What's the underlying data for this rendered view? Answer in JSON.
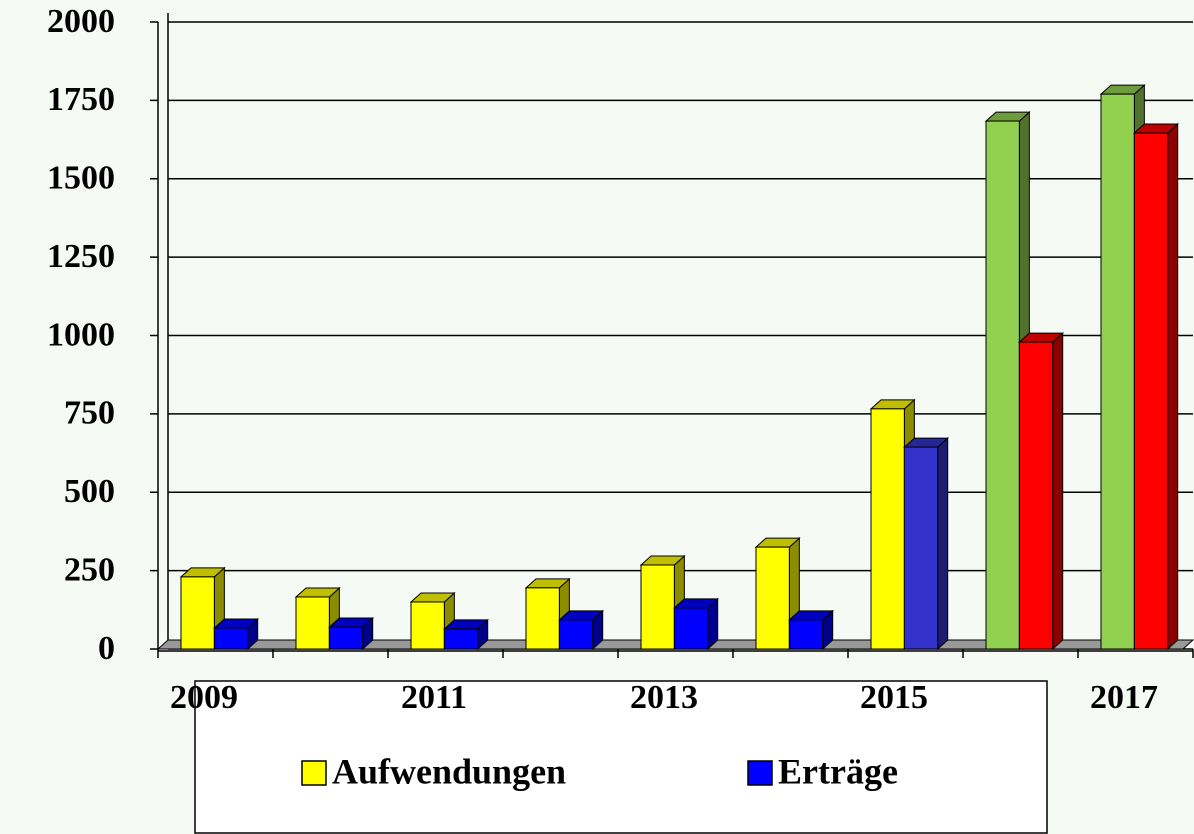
{
  "chart_data": {
    "type": "bar3d",
    "categories": [
      "2009",
      null,
      "2011",
      null,
      "2013",
      null,
      "2015",
      null,
      "2017"
    ],
    "series": [
      {
        "name": "Aufwendungen",
        "color": "#ffff00",
        "point_colors": [
          "#ffff00",
          "#ffff00",
          "#ffff00",
          "#ffff00",
          "#ffff00",
          "#ffff00",
          "#ffff00",
          "#92d050",
          "#92d050"
        ],
        "values": [
          230,
          166,
          150,
          195,
          268,
          325,
          766,
          1684,
          1770
        ]
      },
      {
        "name": "Erträge",
        "color": "#0000ff",
        "point_colors": [
          "#0000ff",
          "#0000ff",
          "#0000ff",
          "#0000ff",
          "#0000ff",
          "#0000ff",
          "#3333cc",
          "#ff0000",
          "#ff0000"
        ],
        "values": [
          67,
          70,
          64,
          93,
          131,
          93,
          644,
          979,
          1646
        ]
      }
    ],
    "ylim": [
      0,
      2000
    ],
    "yticks": [
      0,
      250,
      500,
      750,
      1000,
      1250,
      1500,
      1750,
      2000
    ],
    "grid": true,
    "legend": "bottom"
  }
}
